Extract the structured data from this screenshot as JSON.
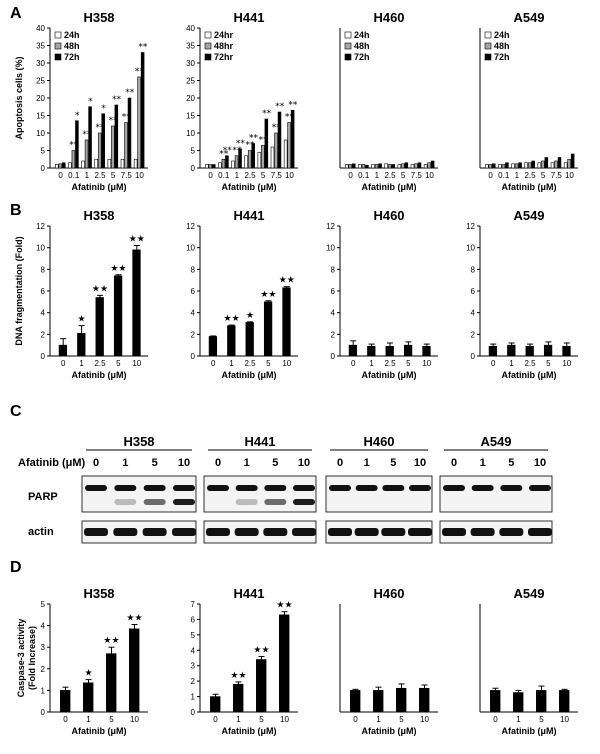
{
  "panels": {
    "A": "A",
    "B": "B",
    "C": "C",
    "D": "D"
  },
  "chart_data": [
    {
      "panel": "A",
      "type": "bar",
      "title": "H358",
      "ylabel": "Apoptosis cells (%)",
      "xlabel": "Afatinib (μM)",
      "categories": [
        "0",
        "0.1",
        "1",
        "2.5",
        "5",
        "7.5",
        "10"
      ],
      "ylim": [
        0,
        40
      ],
      "yticks": [
        0,
        5,
        10,
        15,
        20,
        25,
        30,
        35,
        40
      ],
      "legend_position": "top-left",
      "series": [
        {
          "name": "24h",
          "values": [
            1.0,
            1.5,
            2.0,
            2.5,
            2.5,
            2.5,
            2.5
          ],
          "color": "#ffffff"
        },
        {
          "name": "48h",
          "values": [
            1.2,
            5.0,
            8.0,
            10.0,
            12.0,
            13.0,
            26.0
          ],
          "color": "#a6a6a6"
        },
        {
          "name": "72h",
          "values": [
            1.5,
            13.5,
            17.5,
            15.5,
            18.0,
            20.0,
            33.0
          ],
          "color": "#000000"
        }
      ],
      "annotations": [
        "*",
        "**",
        "*",
        "**",
        "*",
        "**",
        "**",
        "**",
        "**",
        "**",
        "**",
        "**"
      ]
    },
    {
      "panel": "A",
      "type": "bar",
      "title": "H441",
      "xlabel": "Afatinib (μM)",
      "categories": [
        "0",
        "0.1",
        "1",
        "2.5",
        "5",
        "7.5",
        "10"
      ],
      "ylim": [
        0,
        40
      ],
      "yticks": [
        0,
        5,
        10,
        15,
        20,
        25,
        30,
        35,
        40
      ],
      "legend_position": "top-left",
      "series": [
        {
          "name": "24hr",
          "values": [
            1.0,
            1.5,
            2.0,
            3.5,
            4.5,
            6.0,
            8.0
          ],
          "color": "#ffffff"
        },
        {
          "name": "48hr",
          "values": [
            1.0,
            2.5,
            3.5,
            5.0,
            6.5,
            10.0,
            13.0
          ],
          "color": "#a6a6a6"
        },
        {
          "name": "72hr",
          "values": [
            1.0,
            3.5,
            5.5,
            7.0,
            14.0,
            16.0,
            16.5
          ],
          "color": "#000000"
        }
      ],
      "annotations": [
        "**",
        "**",
        "**",
        "**",
        "**",
        "**",
        "**",
        "**",
        "**",
        "**",
        "**",
        "**",
        "**",
        "**",
        "**",
        "**",
        "**",
        "**"
      ]
    },
    {
      "panel": "A",
      "type": "bar",
      "title": "H460",
      "xlabel": "Afatinib (μM)",
      "categories": [
        "0",
        "0.1",
        "1",
        "2.5",
        "5",
        "7.5",
        "10"
      ],
      "ylim": [
        0,
        40
      ],
      "legend_position": "top-left",
      "series": [
        {
          "name": "24h",
          "values": [
            1.0,
            1.0,
            1.0,
            1.2,
            1.0,
            1.0,
            1.0
          ],
          "color": "#ffffff"
        },
        {
          "name": "48h",
          "values": [
            1.0,
            1.0,
            1.0,
            1.0,
            1.2,
            1.2,
            1.5
          ],
          "color": "#a6a6a6"
        },
        {
          "name": "72h",
          "values": [
            1.2,
            0.8,
            1.2,
            1.0,
            1.5,
            1.5,
            2.0
          ],
          "color": "#000000"
        }
      ]
    },
    {
      "panel": "A",
      "type": "bar",
      "title": "A549",
      "xlabel": "Afatinib (μM)",
      "categories": [
        "0",
        "0.1",
        "1",
        "2.5",
        "5",
        "7.5",
        "10"
      ],
      "ylim": [
        0,
        40
      ],
      "legend_position": "top-left",
      "series": [
        {
          "name": "24h",
          "values": [
            1.0,
            1.0,
            1.2,
            1.5,
            1.5,
            1.5,
            1.5
          ],
          "color": "#ffffff"
        },
        {
          "name": "48h",
          "values": [
            1.0,
            1.0,
            1.2,
            1.5,
            2.0,
            2.0,
            2.5
          ],
          "color": "#a6a6a6"
        },
        {
          "name": "72h",
          "values": [
            1.2,
            1.5,
            1.5,
            2.0,
            3.0,
            3.0,
            4.0
          ],
          "color": "#000000"
        }
      ]
    },
    {
      "panel": "B",
      "type": "bar",
      "title": "H358",
      "ylabel": "DNA fragmentation (Fold)",
      "xlabel": "Afatinib (μM)",
      "categories": [
        "0",
        "1",
        "2.5",
        "5",
        "10"
      ],
      "ylim": [
        0,
        12
      ],
      "yticks": [
        0,
        2,
        4,
        6,
        8,
        10,
        12
      ],
      "series": [
        {
          "values": [
            1.0,
            2.1,
            5.4,
            7.4,
            9.8
          ],
          "errors": [
            0.6,
            0.7,
            0.2,
            0.1,
            0.4
          ]
        }
      ],
      "annotations": [
        "",
        "★",
        "★★",
        "★★",
        "★★"
      ]
    },
    {
      "panel": "B",
      "type": "bar",
      "title": "H441",
      "xlabel": "Afatinib (μM)",
      "categories": [
        "0",
        "1",
        "2.5",
        "5",
        "10"
      ],
      "ylim": [
        0,
        12
      ],
      "yticks": [
        0,
        2,
        4,
        6,
        8,
        10,
        12
      ],
      "series": [
        {
          "values": [
            1.8,
            2.8,
            3.1,
            5.0,
            6.3
          ],
          "errors": [
            0.05,
            0.05,
            0.05,
            0.1,
            0.1
          ]
        }
      ],
      "annotations": [
        "",
        "★★",
        "★",
        "★★",
        "★★"
      ]
    },
    {
      "panel": "B",
      "type": "bar",
      "title": "H460",
      "xlabel": "Afatinib (μM)",
      "categories": [
        "0",
        "1",
        "2.5",
        "5",
        "10"
      ],
      "ylim": [
        0,
        12
      ],
      "yticks": [
        0,
        2,
        4,
        6,
        8,
        10,
        12
      ],
      "series": [
        {
          "values": [
            1.0,
            0.9,
            0.9,
            1.0,
            0.9
          ],
          "errors": [
            0.4,
            0.2,
            0.3,
            0.3,
            0.2
          ]
        }
      ]
    },
    {
      "panel": "B",
      "type": "bar",
      "title": "A549",
      "xlabel": "Afatinib (μM)",
      "categories": [
        "0",
        "1",
        "2.5",
        "5",
        "10"
      ],
      "ylim": [
        0,
        12
      ],
      "yticks": [
        0,
        2,
        4,
        6,
        8,
        10,
        12
      ],
      "series": [
        {
          "values": [
            0.9,
            1.0,
            0.9,
            1.0,
            0.9
          ],
          "errors": [
            0.2,
            0.2,
            0.2,
            0.3,
            0.3
          ]
        }
      ]
    },
    {
      "panel": "D",
      "type": "bar",
      "title": "H358",
      "ylabel": "Caspase-3 activity (Fold Increase)",
      "xlabel": "Afatinib (μM)",
      "categories": [
        "0",
        "1",
        "5",
        "10"
      ],
      "ylim": [
        0,
        5
      ],
      "yticks": [
        0,
        1,
        2,
        3,
        4,
        5
      ],
      "series": [
        {
          "values": [
            1.0,
            1.35,
            2.7,
            3.85
          ],
          "errors": [
            0.15,
            0.15,
            0.3,
            0.2
          ]
        }
      ],
      "annotations": [
        "",
        "★",
        "★★",
        "★★"
      ]
    },
    {
      "panel": "D",
      "type": "bar",
      "title": "H441",
      "xlabel": "Afatinib (μM)",
      "categories": [
        "0",
        "1",
        "5",
        "10"
      ],
      "ylim": [
        0,
        7
      ],
      "yticks": [
        0,
        1,
        2,
        3,
        4,
        5,
        6,
        7
      ],
      "series": [
        {
          "values": [
            1.0,
            1.8,
            3.4,
            6.3
          ],
          "errors": [
            0.15,
            0.15,
            0.2,
            0.2
          ]
        }
      ],
      "annotations": [
        "",
        "★★",
        "★★",
        "★★"
      ]
    },
    {
      "panel": "D",
      "type": "bar",
      "title": "H460",
      "xlabel": "Afatinib (μM)",
      "categories": [
        "0",
        "1",
        "5",
        "10"
      ],
      "ylim": [
        0,
        5
      ],
      "series": [
        {
          "values": [
            1.0,
            1.0,
            1.1,
            1.1
          ],
          "errors": [
            0.05,
            0.15,
            0.2,
            0.15
          ]
        }
      ]
    },
    {
      "panel": "D",
      "type": "bar",
      "title": "A549",
      "xlabel": "Afatinib (μM)",
      "categories": [
        "0",
        "1",
        "5",
        "10"
      ],
      "ylim": [
        0,
        5
      ],
      "series": [
        {
          "values": [
            1.0,
            0.9,
            1.0,
            1.0
          ],
          "errors": [
            0.1,
            0.1,
            0.2,
            0.05
          ]
        }
      ]
    }
  ],
  "blot": {
    "treatment_label": "Afatinib (μM)",
    "doses": [
      "0",
      "1",
      "5",
      "10"
    ],
    "cell_lines": [
      "H358",
      "H441",
      "H460",
      "A549"
    ],
    "rows": [
      "PARP",
      "actin"
    ]
  }
}
